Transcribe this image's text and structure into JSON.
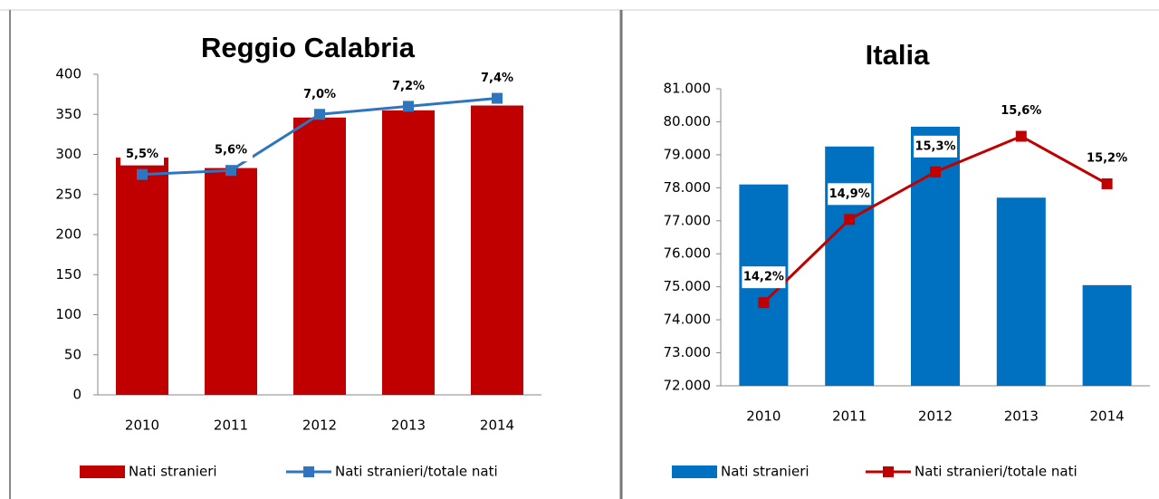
{
  "chart_data": [
    {
      "type": "bar-line",
      "title": "Reggio Calabria",
      "categories": [
        "2010",
        "2011",
        "2012",
        "2013",
        "2014"
      ],
      "ylim": [
        0,
        400
      ],
      "yticks": [
        0,
        50,
        100,
        150,
        200,
        250,
        300,
        350,
        400
      ],
      "y2lim": [
        0,
        8
      ],
      "series": [
        {
          "name": "Nati stranieri",
          "type": "bar",
          "color": "#c00000",
          "values": [
            296,
            283,
            346,
            355,
            361
          ]
        },
        {
          "name": "Nati stranieri/totale nati",
          "type": "line",
          "axis": "y2",
          "color": "#2e75c0",
          "values": [
            5.5,
            5.6,
            7.0,
            7.2,
            7.4
          ],
          "value_labels": [
            "5,5%",
            "5,6%",
            "7,0%",
            "7,2%",
            "7,4%"
          ]
        }
      ]
    },
    {
      "type": "bar-line",
      "title": "Italia",
      "categories": [
        "2010",
        "2011",
        "2012",
        "2013",
        "2014"
      ],
      "ylim": [
        72000,
        81000
      ],
      "yticks": [
        {
          "value": 72000,
          "label": "72.000"
        },
        {
          "value": 73000,
          "label": "73.000"
        },
        {
          "value": 74000,
          "label": "74.000"
        },
        {
          "value": 75000,
          "label": "75.000"
        },
        {
          "value": 76000,
          "label": "76.000"
        },
        {
          "value": 77000,
          "label": "77.000"
        },
        {
          "value": 78000,
          "label": "78.000"
        },
        {
          "value": 79000,
          "label": "79.000"
        },
        {
          "value": 80000,
          "label": "80.000"
        },
        {
          "value": 81000,
          "label": "81.000"
        }
      ],
      "y2lim": [
        13.5,
        16
      ],
      "series": [
        {
          "name": "Nati stranieri",
          "type": "bar",
          "color": "#0070c0",
          "values": [
            78100,
            79250,
            79850,
            77700,
            75050
          ]
        },
        {
          "name": "Nati stranieri/totale nati",
          "type": "line",
          "axis": "y2",
          "color": "#c00000",
          "values": [
            14.2,
            14.9,
            15.3,
            15.6,
            15.2
          ],
          "value_labels": [
            "14,2%",
            "14,9%",
            "15,3%",
            "15,6%",
            "15,2%"
          ]
        }
      ]
    }
  ]
}
